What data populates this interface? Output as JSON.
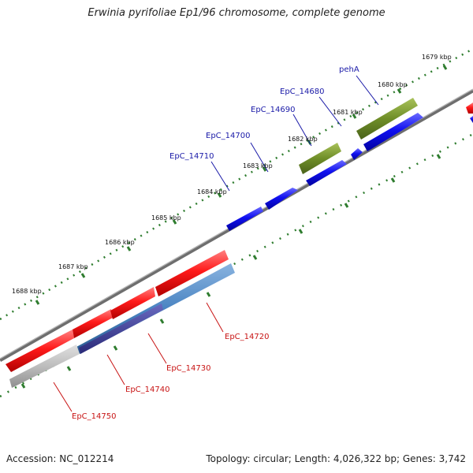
{
  "title": "Erwinia pyrifoliae Ep1/96 chromosome, complete genome",
  "footer": {
    "accession": "Accession: NC_012214",
    "summary": "Topology: circular; Length: 4,026,322 bp; Genes: 3,742"
  },
  "colors": {
    "backbone": "#8c8c8c",
    "dots": "#2f7d2f",
    "label_forward": "#1a1aa8",
    "label_reverse": "#c81414",
    "gene_blue": "#1414f0",
    "gene_red": "#f00f0f",
    "gene_olive": "#6f8e28",
    "gene_steel": "#4a84c2",
    "gene_navy": "#3a3a90",
    "gene_grey": "#b4b4b4"
  },
  "ticks": [
    {
      "label": "1679 kbp"
    },
    {
      "label": "1680 kbp"
    },
    {
      "label": "1681 kbp"
    },
    {
      "label": "1682 kbp"
    },
    {
      "label": "1683 kbp"
    },
    {
      "label": "1684 kbp"
    },
    {
      "label": "1685 kbp"
    },
    {
      "label": "1686 kbp"
    },
    {
      "label": "1687 kbp"
    },
    {
      "label": "1688 kbp"
    }
  ],
  "gene_labels": [
    {
      "text": "pehA",
      "strand": "forward"
    },
    {
      "text": "EpC_14680",
      "strand": "forward"
    },
    {
      "text": "EpC_14690",
      "strand": "forward"
    },
    {
      "text": "EpC_14700",
      "strand": "forward"
    },
    {
      "text": "EpC_14710",
      "strand": "forward"
    },
    {
      "text": "EpC_14720",
      "strand": "reverse"
    },
    {
      "text": "EpC_14730",
      "strand": "reverse"
    },
    {
      "text": "EpC_14740",
      "strand": "reverse"
    },
    {
      "text": "EpC_14750",
      "strand": "reverse"
    }
  ]
}
